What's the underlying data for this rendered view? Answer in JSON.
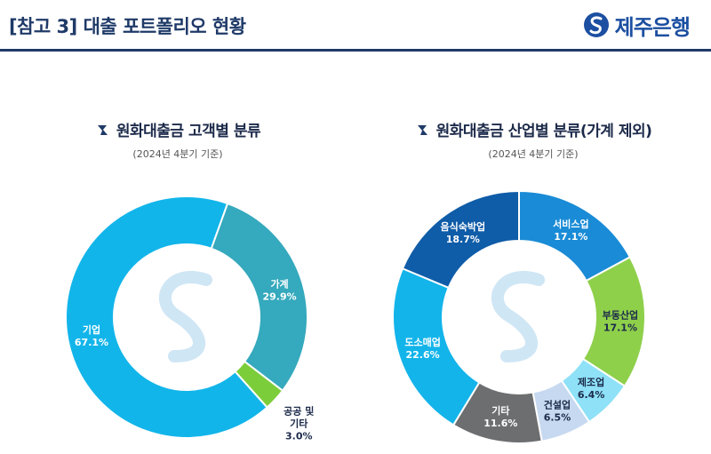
{
  "header": {
    "title": "[참고 3] 대출 포트폴리오 현황",
    "logo_text": "제주은행",
    "accent_color": "#1f3a68",
    "logo_color": "#1c4fa1"
  },
  "chart_data": [
    {
      "type": "pie",
      "title": "원화대출금 고객별 분류",
      "subtitle": "(2024년 4분기 기준)",
      "categories": [
        "기업",
        "가계",
        "공공 및 기타"
      ],
      "values": [
        67.1,
        29.9,
        3.0
      ],
      "value_labels": [
        "67.1%",
        "29.9%",
        "3.0%"
      ],
      "colors": [
        "#12b5ea",
        "#35a9bd",
        "#7ccd3a"
      ],
      "donut": true
    },
    {
      "type": "pie",
      "title": "원화대출금 산업별 분류(가계 제외)",
      "subtitle": "(2024년 4분기 기준)",
      "categories": [
        "서비스업",
        "부동산업",
        "제조업",
        "건설업",
        "기타",
        "도소매업",
        "음식숙박업"
      ],
      "values": [
        17.1,
        17.1,
        6.4,
        6.5,
        11.6,
        22.6,
        18.7
      ],
      "value_labels": [
        "17.1%",
        "17.1%",
        "6.4%",
        "6.5%",
        "11.6%",
        "22.6%",
        "18.7%"
      ],
      "colors": [
        "#1a8bd6",
        "#8fd04b",
        "#8ee1f7",
        "#c7d9f0",
        "#6d6e70",
        "#13b4ea",
        "#0f5ca8"
      ],
      "donut": true
    }
  ]
}
